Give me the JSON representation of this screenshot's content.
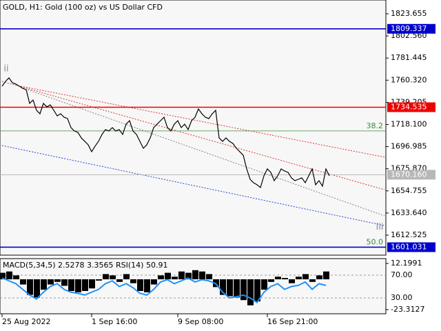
{
  "chart_data": [
    {
      "type": "line",
      "title": "GOLD, H1:  Gold (100 oz) vs US Dollar CFD",
      "xlim": [
        0,
        111.4
      ],
      "xticks": [
        {
          "value": 0,
          "label": "25 Aug 2022"
        },
        {
          "value": 26,
          "label": "1 Sep 16:00"
        },
        {
          "value": 51,
          "label": "9 Sep 08:00"
        },
        {
          "value": 77,
          "label": "16 Sep 21:00"
        }
      ],
      "ylim": [
        1593.45,
        1836.81
      ],
      "yticks": [
        1823.655,
        {
          "value": 1802.56,
          "label": "1802.560"
        },
        1781.445,
        {
          "value": 1760.32,
          "label": "1760.320"
        },
        1739.205,
        {
          "value": 1718.1,
          "label": "1718.100"
        },
        1696.985,
        {
          "value": 1675.87,
          "label": "1675.870"
        },
        1654.755,
        {
          "value": 1633.64,
          "label": "1633.640"
        },
        1612.525
      ],
      "series": [
        {
          "color": "#000000",
          "values": [
            1754.6,
            1759.2,
            1762.5,
            1757.9,
            1756.6,
            1754.6,
            1752.6,
            1751.3,
            1738.2,
            1741.4,
            1731.6,
            1728.3,
            1738.2,
            1734.9,
            1736.8,
            1731.6,
            1726.3,
            1728.3,
            1725.0,
            1723.7,
            1715.1,
            1711.9,
            1710.5,
            1705.3,
            1702.0,
            1698.7,
            1692.1,
            1697.4,
            1702.0,
            1708.6,
            1713.2,
            1711.9,
            1715.1,
            1711.9,
            1713.2,
            1708.6,
            1718.4,
            1721.7,
            1711.9,
            1708.6,
            1702.0,
            1695.4,
            1698.7,
            1705.3,
            1715.1,
            1718.4,
            1721.7,
            1725.0,
            1715.1,
            1711.9,
            1718.4,
            1721.7,
            1715.1,
            1718.4,
            1713.2,
            1721.7,
            1725.0,
            1732.9,
            1728.3,
            1725.0,
            1723.7,
            1728.3,
            1731.6,
            1705.3,
            1702.0,
            1705.3,
            1702.0,
            1700.0,
            1695.4,
            1692.1,
            1688.8,
            1675.7,
            1665.8,
            1662.5,
            1660.6,
            1657.9,
            1669.1,
            1675.7,
            1672.4,
            1664.5,
            1669.1,
            1675.7,
            1673.7,
            1672.4,
            1667.1,
            1664.5,
            1665.8,
            1667.1,
            1662.5,
            1669.1,
            1675.7,
            1660.6,
            1664.5,
            1659.2,
            1675.7,
            1669.1
          ]
        }
      ],
      "levels": [
        {
          "value": 1809.337,
          "color": "#0000cd"
        },
        {
          "value": 1734.535,
          "color": "#ee0000"
        },
        {
          "value": 1670.16,
          "label": "1670.160",
          "color": "#b8b8b8"
        },
        {
          "value": 1601.031,
          "color": "#0000cd"
        }
      ],
      "fibonacci": [
        {
          "name": "38.2",
          "value": 1711.9,
          "color": "#3a8a3a"
        },
        {
          "name": "50.0",
          "value": 1601.0,
          "color": "#3a8a3a"
        }
      ],
      "trendlines": [
        {
          "x": [
            0,
            111
          ],
          "values": [
            1759.2,
            1655.9
          ],
          "color": "#e03030"
        },
        {
          "x": [
            5.4,
            111
          ],
          "values": [
            1754.6,
            1686.9
          ],
          "color": "#e03030"
        },
        {
          "x": [
            0,
            111
          ],
          "values": [
            1698.0,
            1621.7
          ],
          "color": "#2040d0"
        },
        {
          "x": [
            7.4,
            111
          ],
          "values": [
            1751.3,
            1631.0
          ],
          "color": "#808080"
        }
      ],
      "annotations": [
        {
          "text": "ii",
          "x": 1.2,
          "y": 1771
        },
        {
          "text": "iii",
          "x": 109.6,
          "y": 1620
        }
      ]
    },
    {
      "type": "macd_rsi",
      "title": "MACD(5,34,5) 2.5278 3.3565 RSI(14) 50.91",
      "xlim": [
        0,
        111.4
      ],
      "x": [
        0,
        2,
        4,
        6,
        8,
        10,
        12,
        14,
        16,
        18,
        20,
        22,
        24,
        26,
        28,
        30,
        32,
        34,
        36,
        38,
        40,
        42,
        44,
        46,
        48,
        50,
        52,
        54,
        56,
        58,
        60,
        62,
        64,
        66,
        68,
        70,
        72,
        74,
        76,
        78,
        80,
        82,
        84,
        86,
        88,
        90,
        92,
        94
      ],
      "ylim": [
        -26.49,
        15.91
      ],
      "yticks": [
        12.1991,
        -23.3127
      ],
      "y2lim": [
        2.1,
        99.1
      ],
      "y2ticks": [
        {
          "value": 70,
          "label": "70.00"
        },
        {
          "value": 30,
          "label": "30.00"
        }
      ],
      "series": [
        {
          "color": "#000000",
          "values": [
            5,
            6,
            3,
            -4,
            -12,
            -14,
            -8,
            -4,
            -2,
            -5,
            -9,
            -10,
            -9,
            -7,
            -1,
            4,
            3,
            -2,
            4,
            -3,
            -9,
            -10,
            -4,
            3,
            5,
            2,
            6,
            5,
            7,
            6,
            4,
            -6,
            -12,
            -13,
            -14,
            -16,
            -20,
            -17,
            -8,
            -2,
            2,
            1,
            -3,
            2,
            4,
            -2,
            3,
            6
          ]
        },
        {
          "color": "#1e90ff",
          "axis": "y2",
          "values": [
            65,
            60,
            55,
            45,
            35,
            28,
            40,
            50,
            55,
            45,
            40,
            38,
            35,
            40,
            45,
            55,
            60,
            50,
            55,
            48,
            38,
            35,
            45,
            58,
            62,
            55,
            60,
            65,
            58,
            62,
            60,
            55,
            40,
            30,
            32,
            35,
            30,
            22,
            40,
            50,
            55,
            45,
            50,
            52,
            58,
            45,
            55,
            52
          ]
        }
      ]
    }
  ]
}
